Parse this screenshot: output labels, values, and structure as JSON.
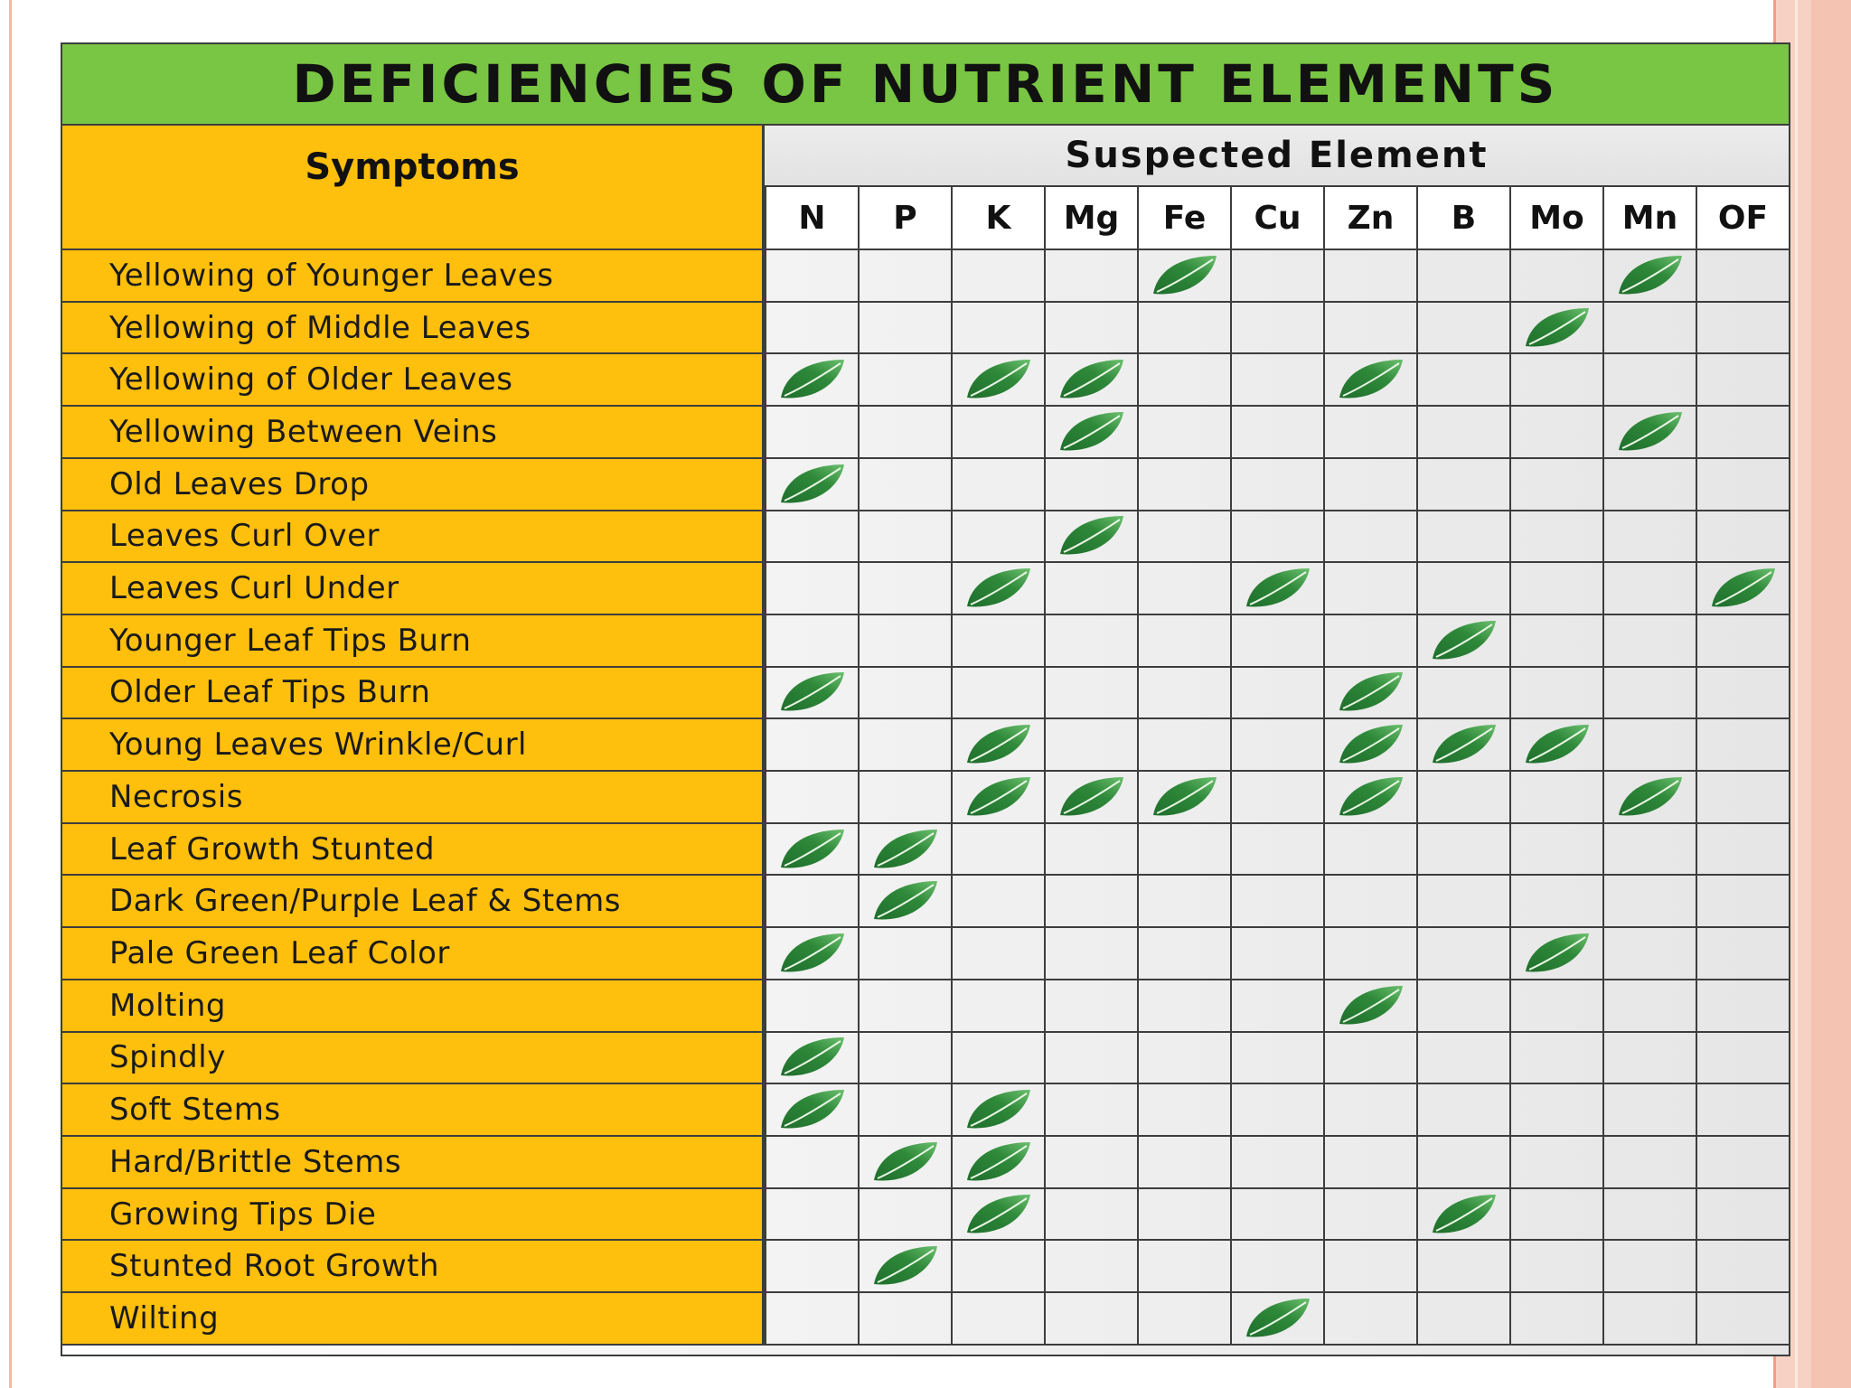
{
  "title": "DEFICIENCIES OF NUTRIENT ELEMENTS",
  "symptoms_header": "Symptoms",
  "suspected_header": "Suspected Element",
  "elements": [
    "N",
    "P",
    "K",
    "Mg",
    "Fe",
    "Cu",
    "Zn",
    "B",
    "Mo",
    "Mn",
    "OF"
  ],
  "marker_icon": "leaf-icon",
  "colors": {
    "title_bar": "#79c544",
    "symptom_column": "#ffbf0d",
    "leaf": "#2f8a3a"
  },
  "rows": [
    {
      "symptom": "Yellowing of Younger Leaves",
      "marks": [
        "Fe",
        "Mn"
      ]
    },
    {
      "symptom": "Yellowing of Middle Leaves",
      "marks": [
        "Mo"
      ]
    },
    {
      "symptom": "Yellowing of Older Leaves",
      "marks": [
        "N",
        "K",
        "Mg",
        "Zn"
      ]
    },
    {
      "symptom": "Yellowing Between Veins",
      "marks": [
        "Mg",
        "Mn"
      ]
    },
    {
      "symptom": "Old Leaves Drop",
      "marks": [
        "N"
      ]
    },
    {
      "symptom": "Leaves Curl Over",
      "marks": [
        "Mg"
      ]
    },
    {
      "symptom": "Leaves Curl Under",
      "marks": [
        "K",
        "Cu",
        "OF"
      ]
    },
    {
      "symptom": "Younger Leaf Tips Burn",
      "marks": [
        "B"
      ]
    },
    {
      "symptom": "Older Leaf Tips Burn",
      "marks": [
        "N",
        "Zn"
      ]
    },
    {
      "symptom": "Young Leaves Wrinkle/Curl",
      "marks": [
        "K",
        "Zn",
        "B",
        "Mo"
      ]
    },
    {
      "symptom": "Necrosis",
      "marks": [
        "K",
        "Mg",
        "Fe",
        "Zn",
        "Mn"
      ]
    },
    {
      "symptom": "Leaf Growth Stunted",
      "marks": [
        "N",
        "P"
      ]
    },
    {
      "symptom": "Dark Green/Purple Leaf & Stems",
      "marks": [
        "P"
      ]
    },
    {
      "symptom": "Pale Green Leaf Color",
      "marks": [
        "N",
        "Mo"
      ]
    },
    {
      "symptom": "Molting",
      "marks": [
        "Zn"
      ]
    },
    {
      "symptom": "Spindly",
      "marks": [
        "N"
      ]
    },
    {
      "symptom": "Soft Stems",
      "marks": [
        "N",
        "K"
      ]
    },
    {
      "symptom": "Hard/Brittle Stems",
      "marks": [
        "P",
        "K"
      ]
    },
    {
      "symptom": "Growing Tips Die",
      "marks": [
        "K",
        "B"
      ]
    },
    {
      "symptom": "Stunted Root Growth",
      "marks": [
        "P"
      ]
    },
    {
      "symptom": "Wilting",
      "marks": [
        "Cu"
      ]
    }
  ]
}
